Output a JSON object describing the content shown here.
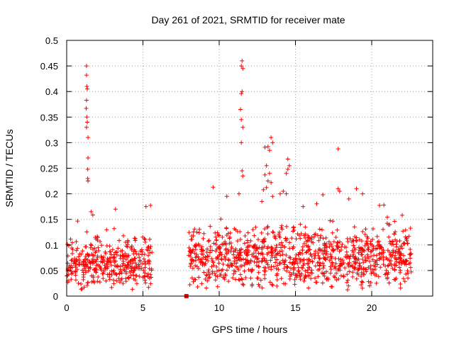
{
  "chart_data": {
    "type": "scatter",
    "title": "Day 261 of 2021, SRMTID for receiver mate",
    "xlabel": "GPS time / hours",
    "ylabel": "SRMTID / TECUs",
    "xlim": [
      0,
      24
    ],
    "ylim": [
      0,
      0.5
    ],
    "xticks": [
      0,
      5,
      10,
      15,
      20
    ],
    "xtick_labels": [
      "0",
      "5",
      "10",
      "15",
      "20"
    ],
    "yticks": [
      0,
      0.05,
      0.1,
      0.15,
      0.2,
      0.25,
      0.3,
      0.35,
      0.4,
      0.45,
      0.5
    ],
    "ytick_labels": [
      "0",
      "0.05",
      "0.1",
      "0.15",
      "0.2",
      "0.25",
      "0.3",
      "0.35",
      "0.4",
      "0.45",
      "0.5"
    ],
    "grid": true,
    "marker": "plus",
    "color": "#ff0000",
    "gap_marker": {
      "x": 7.85,
      "y": 0.0,
      "marker": "square"
    },
    "segments": [
      {
        "x_range": [
          0.0,
          5.6
        ],
        "baseline": 0.065,
        "spread": 0.035
      },
      {
        "x_range": [
          8.0,
          22.6
        ],
        "baseline": 0.075,
        "spread": 0.04
      }
    ],
    "highlights": [
      {
        "x": 1.3,
        "y": 0.45
      },
      {
        "x": 1.3,
        "y": 0.432
      },
      {
        "x": 1.32,
        "y": 0.41
      },
      {
        "x": 1.35,
        "y": 0.405
      },
      {
        "x": 1.3,
        "y": 0.383
      },
      {
        "x": 1.28,
        "y": 0.367
      },
      {
        "x": 1.32,
        "y": 0.35
      },
      {
        "x": 1.35,
        "y": 0.34
      },
      {
        "x": 1.3,
        "y": 0.33
      },
      {
        "x": 1.4,
        "y": 0.31
      },
      {
        "x": 1.4,
        "y": 0.27
      },
      {
        "x": 1.38,
        "y": 0.248
      },
      {
        "x": 1.38,
        "y": 0.23
      },
      {
        "x": 1.4,
        "y": 0.225
      },
      {
        "x": 1.6,
        "y": 0.165
      },
      {
        "x": 3.2,
        "y": 0.17
      },
      {
        "x": 5.2,
        "y": 0.175
      },
      {
        "x": 11.5,
        "y": 0.46
      },
      {
        "x": 11.45,
        "y": 0.45
      },
      {
        "x": 11.55,
        "y": 0.445
      },
      {
        "x": 11.5,
        "y": 0.4
      },
      {
        "x": 11.45,
        "y": 0.396
      },
      {
        "x": 11.4,
        "y": 0.365
      },
      {
        "x": 11.45,
        "y": 0.345
      },
      {
        "x": 11.55,
        "y": 0.33
      },
      {
        "x": 11.45,
        "y": 0.3
      },
      {
        "x": 11.5,
        "y": 0.245
      },
      {
        "x": 11.55,
        "y": 0.235
      },
      {
        "x": 11.3,
        "y": 0.2
      },
      {
        "x": 9.6,
        "y": 0.213
      },
      {
        "x": 10.5,
        "y": 0.195
      },
      {
        "x": 13.4,
        "y": 0.31
      },
      {
        "x": 13.5,
        "y": 0.3
      },
      {
        "x": 13.2,
        "y": 0.292
      },
      {
        "x": 13.0,
        "y": 0.291
      },
      {
        "x": 13.3,
        "y": 0.285
      },
      {
        "x": 14.5,
        "y": 0.268
      },
      {
        "x": 13.1,
        "y": 0.255
      },
      {
        "x": 14.6,
        "y": 0.255
      },
      {
        "x": 14.5,
        "y": 0.248
      },
      {
        "x": 13.3,
        "y": 0.24
      },
      {
        "x": 14.4,
        "y": 0.24
      },
      {
        "x": 13.0,
        "y": 0.237
      },
      {
        "x": 13.2,
        "y": 0.225
      },
      {
        "x": 13.4,
        "y": 0.222
      },
      {
        "x": 13.1,
        "y": 0.212
      },
      {
        "x": 12.9,
        "y": 0.208
      },
      {
        "x": 14.2,
        "y": 0.205
      },
      {
        "x": 14.4,
        "y": 0.2
      },
      {
        "x": 13.5,
        "y": 0.195
      },
      {
        "x": 12.8,
        "y": 0.185
      },
      {
        "x": 14.0,
        "y": 0.2
      },
      {
        "x": 17.8,
        "y": 0.288
      },
      {
        "x": 17.8,
        "y": 0.21
      },
      {
        "x": 17.9,
        "y": 0.205
      },
      {
        "x": 16.8,
        "y": 0.198
      },
      {
        "x": 19.0,
        "y": 0.21
      },
      {
        "x": 19.4,
        "y": 0.2
      },
      {
        "x": 15.5,
        "y": 0.175
      },
      {
        "x": 18.5,
        "y": 0.19
      },
      {
        "x": 20.8,
        "y": 0.178
      },
      {
        "x": 22.0,
        "y": 0.158
      }
    ]
  }
}
